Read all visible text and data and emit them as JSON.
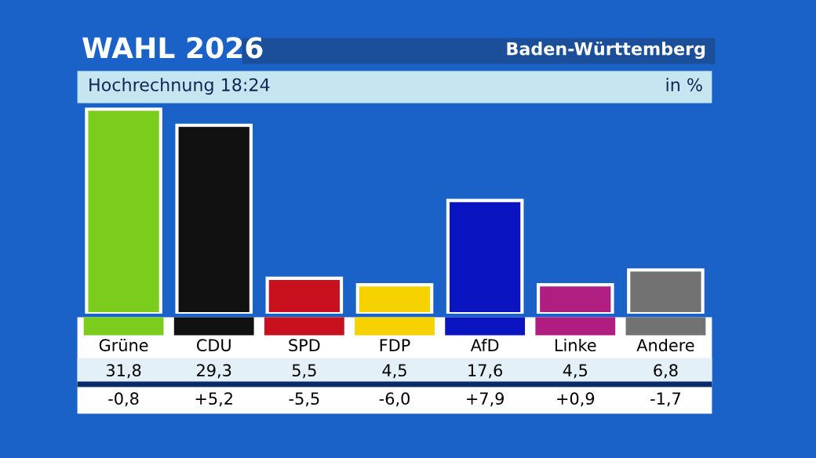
{
  "chart_data": {
    "type": "bar",
    "title": "WAHL 2026",
    "subtitle": "Baden-Württemberg",
    "ylabel": "in %",
    "categories": [
      "Grüne",
      "CDU",
      "SPD",
      "FDP",
      "AfD",
      "Linke",
      "Andere"
    ],
    "values": [
      31.8,
      29.3,
      5.5,
      4.5,
      17.6,
      4.5,
      6.8
    ],
    "colors": [
      "#7ccc1e",
      "#111111",
      "#c8101e",
      "#f5d200",
      "#0a14c0",
      "#b01e82",
      "#727272"
    ],
    "value_labels": [
      "31,8",
      "29,3",
      "5,5",
      "4,5",
      "17,6",
      "4,5",
      "6,8"
    ],
    "annotations": [
      "Hochrechnung 18:24",
      "-0,8",
      "+5,2",
      "-5,5",
      "-6,0",
      "+7,9",
      "+0,9",
      "-1,7"
    ]
  }
}
